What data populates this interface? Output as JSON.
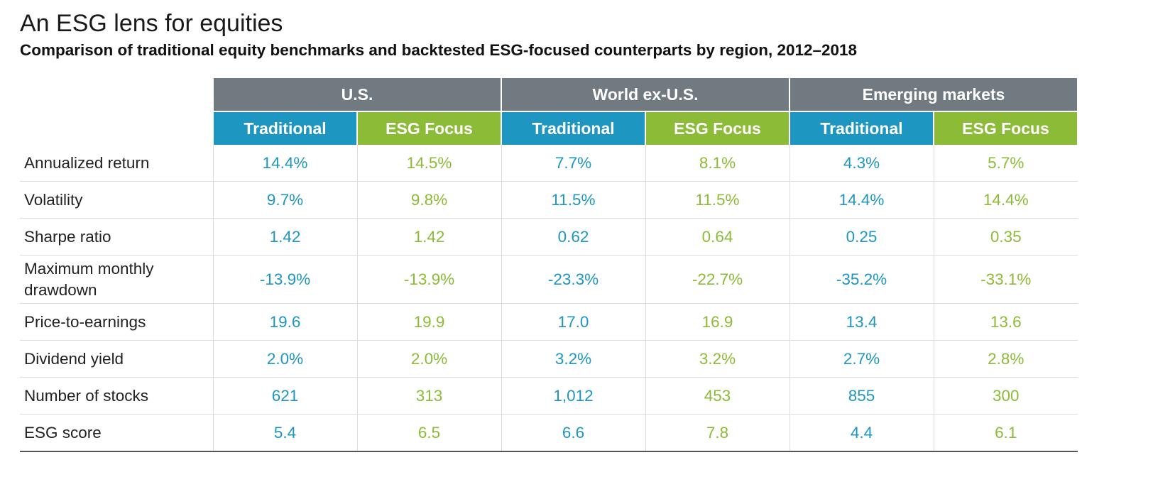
{
  "title": "An ESG lens for equities",
  "subtitle": "Comparison of traditional equity benchmarks and backtested ESG-focused counterparts by region, 2012–2018",
  "colors": {
    "header_gray": "#707a80",
    "traditional": "#1e96c2",
    "esg_focus": "#8bbb37"
  },
  "chart_data": {
    "type": "table",
    "regions": [
      "U.S.",
      "World ex-U.S.",
      "Emerging markets"
    ],
    "columns": [
      "Traditional",
      "ESG Focus",
      "Traditional",
      "ESG Focus",
      "Traditional",
      "ESG Focus"
    ],
    "rows": [
      {
        "label": "Annualized return",
        "values": [
          "14.4%",
          "14.5%",
          "7.7%",
          "8.1%",
          "4.3%",
          "5.7%"
        ]
      },
      {
        "label": "Volatility",
        "values": [
          "9.7%",
          "9.8%",
          "11.5%",
          "11.5%",
          "14.4%",
          "14.4%"
        ]
      },
      {
        "label": "Sharpe ratio",
        "values": [
          "1.42",
          "1.42",
          "0.62",
          "0.64",
          "0.25",
          "0.35"
        ]
      },
      {
        "label": "Maximum monthly drawdown",
        "values": [
          "-13.9%",
          "-13.9%",
          "-23.3%",
          "-22.7%",
          "-35.2%",
          "-33.1%"
        ]
      },
      {
        "label": "Price-to-earnings",
        "values": [
          "19.6",
          "19.9",
          "17.0",
          "16.9",
          "13.4",
          "13.6"
        ]
      },
      {
        "label": "Dividend yield",
        "values": [
          "2.0%",
          "2.0%",
          "3.2%",
          "3.2%",
          "2.7%",
          "2.8%"
        ]
      },
      {
        "label": "Number of stocks",
        "values": [
          "621",
          "313",
          "1,012",
          "453",
          "855",
          "300"
        ]
      },
      {
        "label": "ESG score",
        "values": [
          "5.4",
          "6.5",
          "6.6",
          "7.8",
          "4.4",
          "6.1"
        ]
      }
    ]
  }
}
